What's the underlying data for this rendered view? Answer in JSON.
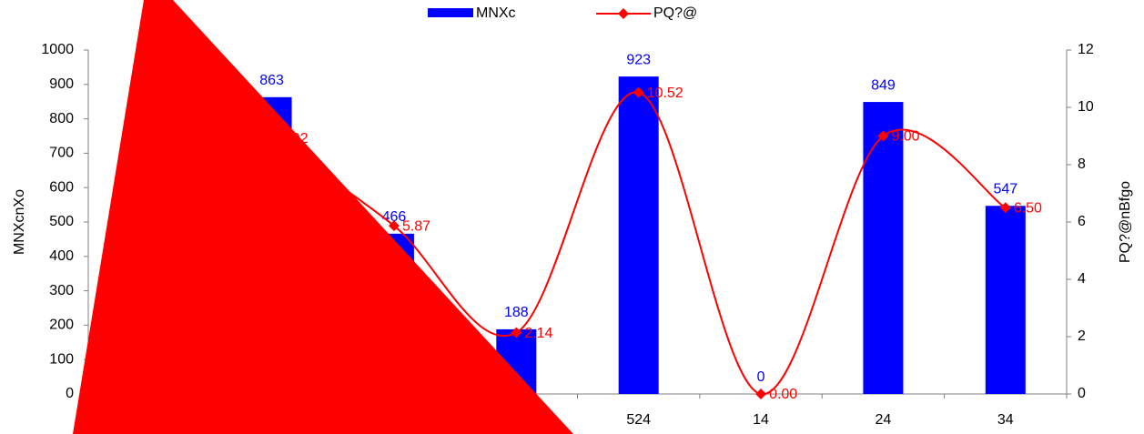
{
  "chart_data": {
    "type": "bar-line",
    "categories": [
      null,
      null,
      null,
      null,
      "524",
      "14",
      "24",
      "34"
    ],
    "series": [
      {
        "name": "MNXc",
        "color": "#0000ff",
        "values": [
          null,
          863,
          466,
          188,
          923,
          0,
          849,
          547
        ]
      },
      {
        "name": "PQ?@",
        "color": "#ff0000",
        "axis": "y2",
        "values": [
          null,
          8.92,
          5.87,
          2.14,
          10.52,
          0,
          9.0,
          6.5
        ],
        "value_labels": [
          null,
          "8.92",
          "5.87",
          "2.14",
          "10.52",
          "0.00",
          "9.00",
          "6.50"
        ]
      }
    ],
    "ylabel": "MNXcnXo",
    "y2label": "PQ?@nBfgo",
    "ylim": [
      0,
      1000
    ],
    "yticks": [
      0,
      100,
      200,
      300,
      400,
      500,
      600,
      700,
      800,
      900,
      1000
    ],
    "y2lim": [
      0,
      12
    ],
    "y2ticks": [
      0,
      2,
      4,
      6,
      8,
      10,
      12
    ],
    "legend": "top"
  }
}
